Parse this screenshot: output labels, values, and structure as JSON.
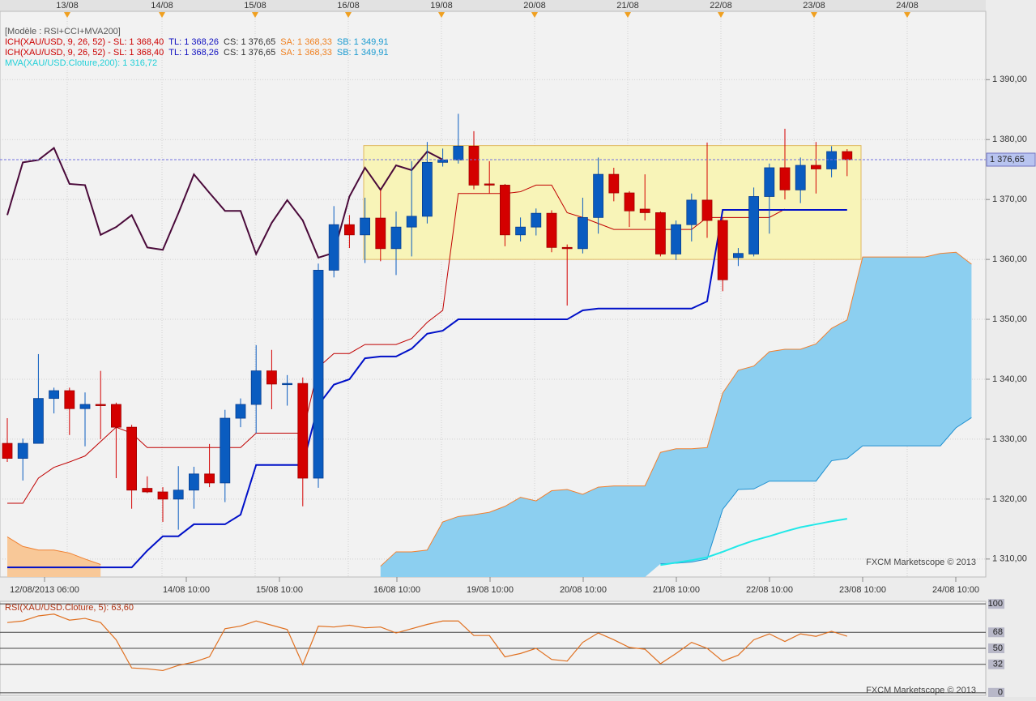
{
  "chart_data": [
    {
      "type": "candlestick",
      "legend_lines": [
        [
          {
            "text": "[Modèle : RSI+CCI+MVA200]",
            "color": "#555555"
          }
        ],
        [
          {
            "text": "ICH(XAU/USD, 9, 26, 52) -  SL: 1 368,40",
            "color": "#cc0000"
          },
          {
            "text": "TL: 1 368,26",
            "color": "#1010c0"
          },
          {
            "text": "CS: 1 376,65",
            "color": "#333333"
          },
          {
            "text": "SA: 1 368,33",
            "color": "#f08020"
          },
          {
            "text": "SB: 1 349,91",
            "color": "#1a9ad0"
          }
        ],
        [
          {
            "text": "ICH(XAU/USD, 9, 26, 52) -  SL: 1 368,40",
            "color": "#cc0000"
          },
          {
            "text": "TL: 1 368,26",
            "color": "#1010c0"
          },
          {
            "text": "CS: 1 376,65",
            "color": "#333333"
          },
          {
            "text": "SA: 1 368,33",
            "color": "#f08020"
          },
          {
            "text": "SB: 1 349,91",
            "color": "#1a9ad0"
          }
        ],
        [
          {
            "text": "MVA(XAU/USD.Cloture,200): 1 316,72",
            "color": "#20d0d8"
          }
        ]
      ],
      "watermark": "FXCM Marketscope © 2013",
      "top_dates": [
        "13/08",
        "14/08",
        "15/08",
        "16/08",
        "19/08",
        "20/08",
        "21/08",
        "22/08",
        "23/08",
        "24/08"
      ],
      "x_labels": [
        "12/08/2013 06:00",
        "14/08 10:00",
        "15/08 10:00",
        "16/08 10:00",
        "19/08 10:00",
        "20/08 10:00",
        "21/08 10:00",
        "22/08 10:00",
        "23/08 10:00",
        "24/08 10:00"
      ],
      "ylim": [
        1307.0,
        1401.4
      ],
      "yticks": [
        {
          "value": 1310,
          "label": "1 310,00"
        },
        {
          "value": 1320,
          "label": "1 320,00"
        },
        {
          "value": 1330,
          "label": "1 330,00"
        },
        {
          "value": 1340,
          "label": "1 340,00"
        },
        {
          "value": 1350,
          "label": "1 350,00"
        },
        {
          "value": 1360,
          "label": "1 360,00"
        },
        {
          "value": 1370,
          "label": "1 370,00"
        },
        {
          "value": 1380,
          "label": "1 380,00"
        },
        {
          "value": 1390,
          "label": "1 390,00"
        }
      ],
      "grid": true,
      "bull_color": "#0a5cc0",
      "bear_color": "#d40000",
      "open": [
        1329.3,
        1326.8,
        1329.3,
        1336.8,
        1338.1,
        1335.1,
        1335.8,
        1335.8,
        1332.0,
        1321.8,
        1321.2,
        1320.0,
        1321.5,
        1324.2,
        1322.7,
        1333.5,
        1335.8,
        1341.4,
        1339.2,
        1339.3,
        1323.5,
        1358.2,
        1365.8,
        1364.1,
        1366.9,
        1361.8,
        1365.4,
        1367.2,
        1376.2,
        1376.6,
        1378.9,
        1372.6,
        1372.4,
        1364.1,
        1365.4,
        1367.7,
        1362.0,
        1361.8,
        1367.0,
        1374.2,
        1371.1,
        1368.4,
        1367.8,
        1360.9,
        1365.8,
        1369.9,
        1366.5,
        1360.3,
        1360.9,
        1370.5,
        1375.3,
        1371.6,
        1375.7,
        1375.1,
        1378.0
      ],
      "high": [
        1333.5,
        1330.1,
        1344.2,
        1338.6,
        1338.6,
        1337.8,
        1341.4,
        1336.1,
        1332.4,
        1323.8,
        1322.0,
        1325.5,
        1325.4,
        1329.2,
        1334.9,
        1336.8,
        1345.7,
        1344.9,
        1340.7,
        1340.3,
        1359.3,
        1368.9,
        1367.4,
        1370.3,
        1371.6,
        1368.0,
        1376.4,
        1379.6,
        1378.5,
        1384.3,
        1381.4,
        1376.4,
        1372.6,
        1367.0,
        1368.5,
        1368.2,
        1362.5,
        1370.3,
        1377.0,
        1375.3,
        1371.4,
        1374.2,
        1368.0,
        1366.5,
        1371.0,
        1379.5,
        1367.0,
        1361.9,
        1372.0,
        1376.0,
        1381.8,
        1377.0,
        1379.6,
        1378.9,
        1378.4
      ],
      "low": [
        1326.2,
        1323.1,
        1329.3,
        1334.3,
        1330.7,
        1328.8,
        1330.0,
        1323.5,
        1318.4,
        1321.0,
        1316.2,
        1314.9,
        1318.4,
        1322.0,
        1319.5,
        1332.0,
        1331.0,
        1335.0,
        1335.6,
        1318.8,
        1321.9,
        1357.0,
        1361.9,
        1359.4,
        1359.7,
        1357.4,
        1360.5,
        1366.0,
        1375.5,
        1376.0,
        1371.7,
        1371.0,
        1362.2,
        1363.0,
        1364.0,
        1361.2,
        1352.3,
        1361.0,
        1364.3,
        1369.7,
        1365.4,
        1366.5,
        1360.5,
        1359.9,
        1363.0,
        1363.6,
        1354.7,
        1358.9,
        1360.5,
        1364.3,
        1370.0,
        1369.4,
        1371.0,
        1373.7,
        1373.9
      ],
      "close": [
        1326.8,
        1329.3,
        1336.8,
        1338.1,
        1335.1,
        1335.8,
        1335.7,
        1332.0,
        1321.5,
        1321.2,
        1320.0,
        1321.5,
        1324.2,
        1322.7,
        1333.5,
        1335.8,
        1341.4,
        1339.2,
        1339.3,
        1323.5,
        1358.2,
        1365.8,
        1364.1,
        1366.9,
        1361.8,
        1365.4,
        1367.2,
        1376.2,
        1376.6,
        1378.9,
        1372.4,
        1372.4,
        1364.1,
        1365.4,
        1367.7,
        1362.0,
        1361.8,
        1367.0,
        1374.2,
        1371.1,
        1368.1,
        1367.8,
        1360.9,
        1365.8,
        1369.9,
        1366.5,
        1356.6,
        1361.0,
        1370.5,
        1375.3,
        1371.6,
        1375.7,
        1375.1,
        1378.0,
        1376.65
      ],
      "series": [
        {
          "color": "#c00000",
          "width": 1,
          "values": [
            1319.3,
            1319.3,
            1323.5,
            1325.3,
            1326.2,
            1327.2,
            1329.6,
            1332.0,
            1331.0,
            1328.6,
            1328.6,
            1328.6,
            1328.6,
            1328.6,
            1328.6,
            1328.6,
            1331.0,
            1331.0,
            1331.0,
            1331.0,
            1342.0,
            1344.3,
            1344.3,
            1345.8,
            1345.8,
            1345.8,
            1346.8,
            1349.5,
            1351.5,
            1371.0,
            1371.0,
            1371.0,
            1371.0,
            1371.3,
            1372.4,
            1372.4,
            1367.8,
            1367.0,
            1366.0,
            1365.0,
            1365.0,
            1365.0,
            1365.0,
            1365.0,
            1365.0,
            1367.0,
            1367.0,
            1367.0,
            1367.0,
            1367.0,
            1368.4,
            null,
            null,
            null,
            null,
            null,
            null,
            null,
            null,
            null,
            null,
            null,
            null
          ]
        },
        {
          "color": "#0010c8",
          "width": 2,
          "values": [
            1308.6,
            1308.6,
            1308.6,
            1308.6,
            1308.6,
            1308.6,
            1308.6,
            1308.6,
            1308.6,
            1311.4,
            1313.8,
            1313.8,
            1315.8,
            1315.8,
            1315.8,
            1317.4,
            1325.7,
            1325.7,
            1325.7,
            1325.7,
            1335.7,
            1339.1,
            1340.0,
            1343.5,
            1343.8,
            1343.8,
            1345.1,
            1347.6,
            1348.1,
            1350.0,
            1350.0,
            1350.0,
            1350.0,
            1350.0,
            1350.0,
            1350.0,
            1350.0,
            1351.5,
            1351.8,
            1351.8,
            1351.8,
            1351.8,
            1351.8,
            1351.8,
            1351.8,
            1353.0,
            1368.26,
            1368.26,
            1368.26,
            1368.26,
            1368.26,
            1368.26,
            1368.26,
            1368.26,
            1368.26,
            null,
            null,
            null,
            null,
            null,
            null,
            null,
            null
          ]
        },
        {
          "color": "#4a0a3a",
          "width": 2,
          "values": [
            1367.4,
            1376.2,
            1376.6,
            1378.6,
            1372.6,
            1372.4,
            1364.1,
            1365.4,
            1367.4,
            1362.0,
            1361.6,
            1367.7,
            1374.2,
            1371.1,
            1368.1,
            1368.1,
            1360.9,
            1366.1,
            1369.9,
            1366.5,
            1360.3,
            1361.1,
            1370.5,
            1375.3,
            1371.6,
            1375.7,
            1374.9,
            1378.0,
            1376.65,
            null,
            null,
            null,
            null,
            null,
            null,
            null,
            null,
            null,
            null,
            null,
            null,
            null,
            null,
            null,
            null,
            null,
            null,
            null,
            null,
            null,
            null,
            null,
            null,
            null,
            null,
            null,
            null,
            null,
            null,
            null,
            null,
            null,
            null
          ]
        },
        {
          "color": "#20e8e8",
          "width": 2,
          "values": [
            null,
            null,
            null,
            null,
            null,
            null,
            null,
            null,
            null,
            null,
            null,
            null,
            null,
            null,
            null,
            null,
            null,
            null,
            null,
            null,
            null,
            null,
            null,
            null,
            null,
            null,
            null,
            null,
            null,
            null,
            null,
            null,
            null,
            null,
            null,
            null,
            null,
            null,
            null,
            null,
            null,
            null,
            1309.0,
            1309.4,
            1309.8,
            1310.3,
            1311.2,
            1312.2,
            1313.1,
            1313.8,
            1314.6,
            1315.3,
            1315.8,
            1316.3,
            1316.72,
            null,
            null,
            null,
            null,
            null,
            null,
            null,
            null
          ]
        }
      ],
      "cloud": {
        "color": "#8ccff0",
        "edge_color": "#f08030",
        "lower_edge_color": "#2090d0",
        "upper": [
          null,
          null,
          null,
          null,
          null,
          null,
          null,
          null,
          null,
          null,
          null,
          null,
          null,
          null,
          null,
          null,
          null,
          null,
          null,
          null,
          null,
          null,
          null,
          null,
          1308.8,
          1311.2,
          1311.2,
          1311.5,
          1316.2,
          1317.1,
          1317.4,
          1317.8,
          1318.8,
          1320.3,
          1319.7,
          1321.4,
          1321.6,
          1320.8,
          1322.0,
          1322.2,
          1322.2,
          1322.2,
          1327.8,
          1328.4,
          1328.4,
          1328.6,
          1337.7,
          1341.5,
          1342.2,
          1344.6,
          1345.0,
          1345.0,
          1345.9,
          1348.5,
          1349.9,
          1360.4,
          1360.4,
          1360.4,
          1360.4,
          1360.4,
          1361.0,
          1361.2,
          1359.2
        ],
        "lower": [
          null,
          null,
          null,
          null,
          null,
          null,
          null,
          null,
          null,
          null,
          null,
          null,
          null,
          null,
          null,
          null,
          null,
          null,
          null,
          null,
          null,
          null,
          null,
          null,
          null,
          null,
          null,
          null,
          null,
          null,
          null,
          null,
          null,
          null,
          null,
          null,
          null,
          null,
          null,
          null,
          null,
          null,
          1309.2,
          1309.3,
          1309.5,
          1310.0,
          1318.3,
          1321.6,
          1321.7,
          1323.0,
          1323.0,
          1323.0,
          1323.0,
          1326.4,
          1326.8,
          1328.9,
          1328.9,
          1328.9,
          1328.9,
          1328.9,
          1328.9,
          1331.9,
          1333.6
        ]
      },
      "cloud_left": {
        "color": "#f8c898",
        "edge_color": "#f08030",
        "upper": [
          1313.7,
          1312.1,
          1311.5,
          1311.5,
          1311.0,
          1310.0,
          1309.1
        ]
      },
      "range_box": {
        "bottom": 1360,
        "top": 1379,
        "color": "#f8f4b8",
        "edge_color": "#e0b860"
      },
      "current_price": {
        "value": 1376.65,
        "label": "1 376,65"
      }
    },
    {
      "type": "line",
      "title": "RSI(XAU/USD.Cloture, 5): 63,60",
      "watermark": "FXCM Marketscope © 2013",
      "color": "#e07020",
      "ylim": [
        -2.9,
        102.9
      ],
      "yticks": [
        0,
        32,
        50,
        68,
        100
      ],
      "values": [
        79,
        80.8,
        86.5,
        88.5,
        81.7,
        83.7,
        79,
        59.6,
        27.9,
        26.9,
        25,
        30.8,
        34.6,
        40.4,
        72.1,
        75,
        80.8,
        76,
        71.2,
        31.7,
        75,
        74,
        76,
        73.1,
        74,
        67.3,
        72.1,
        76.9,
        80.8,
        80.8,
        64.4,
        64.4,
        40.4,
        44.2,
        50,
        37.5,
        35.6,
        56.7,
        67.3,
        59.6,
        51,
        49,
        32.7,
        44.2,
        56.7,
        50,
        35.6,
        42.3,
        59.6,
        66.3,
        57.7,
        66.3,
        63.5,
        69.2,
        63.6
      ]
    }
  ]
}
